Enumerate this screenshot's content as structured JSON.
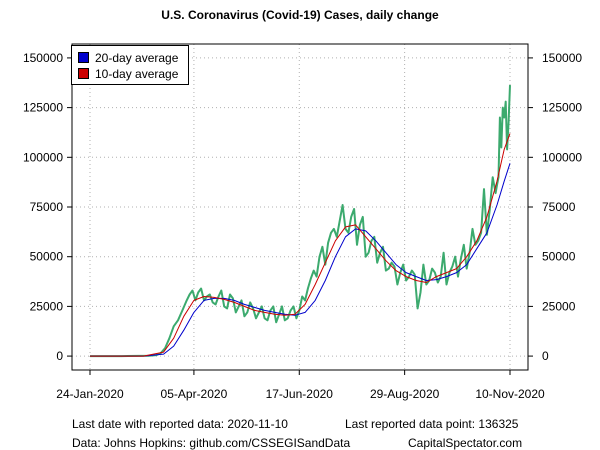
{
  "chart_data": {
    "type": "line",
    "title": "U.S. Coronavirus (Covid-19) Cases, daily change",
    "xlabel": "",
    "ylabel": "",
    "x_range": [
      "2020-01-24",
      "2020-11-10"
    ],
    "x_ticks": [
      "24-Jan-2020",
      "05-Apr-2020",
      "17-Jun-2020",
      "29-Aug-2020",
      "10-Nov-2020"
    ],
    "x_tick_dates": [
      "2020-01-24",
      "2020-04-05",
      "2020-06-17",
      "2020-08-29",
      "2020-11-10"
    ],
    "ylim": [
      -7000,
      157000
    ],
    "y_ticks": [
      0,
      25000,
      50000,
      75000,
      100000,
      125000,
      150000
    ],
    "grid": true,
    "legend_position": "top-left",
    "series": [
      {
        "name": "Daily change",
        "color": "#3caa6e",
        "points": [
          [
            "2020-01-24",
            0
          ],
          [
            "2020-02-15",
            0
          ],
          [
            "2020-03-05",
            200
          ],
          [
            "2020-03-10",
            500
          ],
          [
            "2020-03-13",
            1500
          ],
          [
            "2020-03-16",
            4000
          ],
          [
            "2020-03-19",
            9000
          ],
          [
            "2020-03-22",
            15000
          ],
          [
            "2020-03-25",
            18000
          ],
          [
            "2020-03-28",
            23000
          ],
          [
            "2020-03-31",
            28000
          ],
          [
            "2020-04-02",
            31000
          ],
          [
            "2020-04-04",
            33000
          ],
          [
            "2020-04-06",
            28000
          ],
          [
            "2020-04-08",
            32000
          ],
          [
            "2020-04-10",
            34000
          ],
          [
            "2020-04-12",
            28000
          ],
          [
            "2020-04-14",
            30000
          ],
          [
            "2020-04-16",
            31000
          ],
          [
            "2020-04-18",
            27000
          ],
          [
            "2020-04-20",
            26000
          ],
          [
            "2020-04-22",
            30000
          ],
          [
            "2020-04-24",
            33000
          ],
          [
            "2020-04-26",
            25000
          ],
          [
            "2020-04-28",
            24000
          ],
          [
            "2020-04-30",
            31000
          ],
          [
            "2020-05-02",
            29000
          ],
          [
            "2020-05-04",
            22000
          ],
          [
            "2020-05-06",
            25000
          ],
          [
            "2020-05-08",
            28000
          ],
          [
            "2020-05-10",
            20000
          ],
          [
            "2020-05-12",
            22000
          ],
          [
            "2020-05-14",
            27000
          ],
          [
            "2020-05-16",
            24000
          ],
          [
            "2020-05-18",
            19000
          ],
          [
            "2020-05-20",
            22000
          ],
          [
            "2020-05-22",
            25000
          ],
          [
            "2020-05-24",
            19000
          ],
          [
            "2020-05-26",
            18000
          ],
          [
            "2020-05-28",
            23000
          ],
          [
            "2020-05-30",
            25000
          ],
          [
            "2020-06-01",
            17000
          ],
          [
            "2020-06-03",
            21000
          ],
          [
            "2020-06-05",
            25000
          ],
          [
            "2020-06-07",
            18000
          ],
          [
            "2020-06-09",
            19000
          ],
          [
            "2020-06-11",
            23000
          ],
          [
            "2020-06-13",
            25000
          ],
          [
            "2020-06-15",
            19000
          ],
          [
            "2020-06-17",
            23000
          ],
          [
            "2020-06-19",
            30000
          ],
          [
            "2020-06-21",
            28000
          ],
          [
            "2020-06-23",
            34000
          ],
          [
            "2020-06-25",
            39000
          ],
          [
            "2020-06-27",
            43000
          ],
          [
            "2020-06-29",
            40000
          ],
          [
            "2020-07-01",
            50000
          ],
          [
            "2020-07-03",
            55000
          ],
          [
            "2020-07-05",
            46000
          ],
          [
            "2020-07-07",
            57000
          ],
          [
            "2020-07-09",
            62000
          ],
          [
            "2020-07-11",
            64000
          ],
          [
            "2020-07-13",
            60000
          ],
          [
            "2020-07-15",
            68000
          ],
          [
            "2020-07-17",
            76000
          ],
          [
            "2020-07-19",
            64000
          ],
          [
            "2020-07-21",
            62000
          ],
          [
            "2020-07-23",
            70000
          ],
          [
            "2020-07-25",
            74000
          ],
          [
            "2020-07-27",
            56000
          ],
          [
            "2020-07-29",
            66000
          ],
          [
            "2020-07-31",
            70000
          ],
          [
            "2020-08-02",
            50000
          ],
          [
            "2020-08-04",
            52000
          ],
          [
            "2020-08-06",
            58000
          ],
          [
            "2020-08-08",
            60000
          ],
          [
            "2020-08-10",
            47000
          ],
          [
            "2020-08-12",
            52000
          ],
          [
            "2020-08-14",
            55000
          ],
          [
            "2020-08-16",
            43000
          ],
          [
            "2020-08-18",
            44000
          ],
          [
            "2020-08-20",
            47000
          ],
          [
            "2020-08-22",
            45000
          ],
          [
            "2020-08-24",
            36000
          ],
          [
            "2020-08-26",
            42000
          ],
          [
            "2020-08-28",
            46000
          ],
          [
            "2020-08-30",
            38000
          ],
          [
            "2020-09-01",
            40000
          ],
          [
            "2020-09-03",
            43000
          ],
          [
            "2020-09-05",
            41000
          ],
          [
            "2020-09-07",
            24000
          ],
          [
            "2020-09-09",
            32000
          ],
          [
            "2020-09-11",
            46000
          ],
          [
            "2020-09-13",
            36000
          ],
          [
            "2020-09-15",
            38000
          ],
          [
            "2020-09-17",
            44000
          ],
          [
            "2020-09-19",
            42000
          ],
          [
            "2020-09-21",
            37000
          ],
          [
            "2020-09-23",
            40000
          ],
          [
            "2020-09-25",
            52000
          ],
          [
            "2020-09-27",
            36000
          ],
          [
            "2020-09-29",
            42000
          ],
          [
            "2020-10-01",
            45000
          ],
          [
            "2020-10-03",
            50000
          ],
          [
            "2020-10-05",
            40000
          ],
          [
            "2020-10-07",
            49000
          ],
          [
            "2020-10-09",
            56000
          ],
          [
            "2020-10-11",
            44000
          ],
          [
            "2020-10-13",
            52000
          ],
          [
            "2020-10-15",
            64000
          ],
          [
            "2020-10-17",
            56000
          ],
          [
            "2020-10-19",
            58000
          ],
          [
            "2020-10-21",
            62000
          ],
          [
            "2020-10-23",
            84000
          ],
          [
            "2020-10-25",
            61000
          ],
          [
            "2020-10-27",
            74000
          ],
          [
            "2020-10-29",
            90000
          ],
          [
            "2020-10-31",
            82000
          ],
          [
            "2020-11-01",
            86000
          ],
          [
            "2020-11-02",
            90000
          ],
          [
            "2020-11-03",
            120000
          ],
          [
            "2020-11-04",
            105000
          ],
          [
            "2020-11-05",
            125000
          ],
          [
            "2020-11-06",
            120000
          ],
          [
            "2020-11-07",
            128000
          ],
          [
            "2020-11-08",
            104000
          ],
          [
            "2020-11-09",
            118000
          ],
          [
            "2020-11-10",
            136325
          ]
        ]
      },
      {
        "name": "20-day average",
        "color": "#0000cc",
        "points": [
          [
            "2020-01-24",
            0
          ],
          [
            "2020-03-01",
            0
          ],
          [
            "2020-03-15",
            1000
          ],
          [
            "2020-03-22",
            5000
          ],
          [
            "2020-03-29",
            13000
          ],
          [
            "2020-04-05",
            22000
          ],
          [
            "2020-04-12",
            28000
          ],
          [
            "2020-04-19",
            29000
          ],
          [
            "2020-04-26",
            29000
          ],
          [
            "2020-05-03",
            28000
          ],
          [
            "2020-05-10",
            26000
          ],
          [
            "2020-05-17",
            24500
          ],
          [
            "2020-05-24",
            23000
          ],
          [
            "2020-05-31",
            22000
          ],
          [
            "2020-06-07",
            21000
          ],
          [
            "2020-06-14",
            20500
          ],
          [
            "2020-06-21",
            22000
          ],
          [
            "2020-06-28",
            28000
          ],
          [
            "2020-07-05",
            38000
          ],
          [
            "2020-07-12",
            50000
          ],
          [
            "2020-07-19",
            60000
          ],
          [
            "2020-07-26",
            64000
          ],
          [
            "2020-08-02",
            63000
          ],
          [
            "2020-08-09",
            58000
          ],
          [
            "2020-08-16",
            52000
          ],
          [
            "2020-08-23",
            46000
          ],
          [
            "2020-08-30",
            42000
          ],
          [
            "2020-09-06",
            40000
          ],
          [
            "2020-09-13",
            38000
          ],
          [
            "2020-09-20",
            38500
          ],
          [
            "2020-09-27",
            40000
          ],
          [
            "2020-10-04",
            42000
          ],
          [
            "2020-10-11",
            46000
          ],
          [
            "2020-10-18",
            54000
          ],
          [
            "2020-10-25",
            62000
          ],
          [
            "2020-11-01",
            76000
          ],
          [
            "2020-11-06",
            88000
          ],
          [
            "2020-11-10",
            97000
          ]
        ]
      },
      {
        "name": "10-day average",
        "color": "#cc0000",
        "points": [
          [
            "2020-01-24",
            0
          ],
          [
            "2020-03-01",
            0
          ],
          [
            "2020-03-15",
            2000
          ],
          [
            "2020-03-22",
            9000
          ],
          [
            "2020-03-29",
            20000
          ],
          [
            "2020-04-05",
            28000
          ],
          [
            "2020-04-12",
            30000
          ],
          [
            "2020-04-19",
            29500
          ],
          [
            "2020-04-26",
            28500
          ],
          [
            "2020-05-03",
            27000
          ],
          [
            "2020-05-10",
            25000
          ],
          [
            "2020-05-17",
            23000
          ],
          [
            "2020-05-24",
            22000
          ],
          [
            "2020-05-31",
            21000
          ],
          [
            "2020-06-07",
            20500
          ],
          [
            "2020-06-14",
            21000
          ],
          [
            "2020-06-21",
            26000
          ],
          [
            "2020-06-28",
            36000
          ],
          [
            "2020-07-05",
            47000
          ],
          [
            "2020-07-12",
            58000
          ],
          [
            "2020-07-19",
            65000
          ],
          [
            "2020-07-26",
            66000
          ],
          [
            "2020-08-02",
            60000
          ],
          [
            "2020-08-09",
            54000
          ],
          [
            "2020-08-16",
            48000
          ],
          [
            "2020-08-23",
            43000
          ],
          [
            "2020-08-30",
            40000
          ],
          [
            "2020-09-06",
            38000
          ],
          [
            "2020-09-13",
            37000
          ],
          [
            "2020-09-20",
            40000
          ],
          [
            "2020-09-27",
            42000
          ],
          [
            "2020-10-04",
            44000
          ],
          [
            "2020-10-11",
            50000
          ],
          [
            "2020-10-18",
            58000
          ],
          [
            "2020-10-25",
            70000
          ],
          [
            "2020-11-01",
            88000
          ],
          [
            "2020-11-06",
            104000
          ],
          [
            "2020-11-10",
            112000
          ]
        ]
      }
    ]
  },
  "legend": {
    "items": [
      {
        "label": "20-day average",
        "color": "#0000cc"
      },
      {
        "label": "10-day average",
        "color": "#cc0000"
      }
    ]
  },
  "footer": {
    "last_date": "Last date with reported data:  2020-11-10",
    "last_point": "Last reported data point:  136325",
    "source": "Data: Johns Hopkins: github.com/CSSEGISandData",
    "brand": "CapitalSpectator.com"
  }
}
